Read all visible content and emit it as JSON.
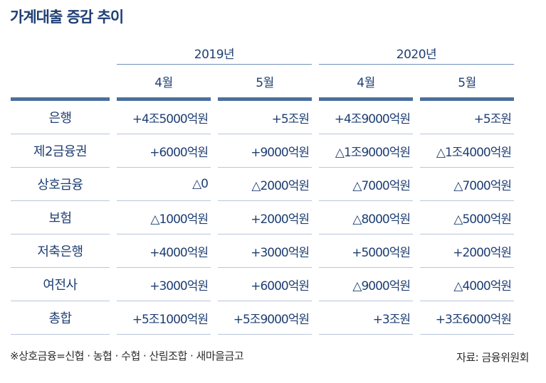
{
  "title": "가계대출 증감 추이",
  "years": [
    "2019년",
    "2020년"
  ],
  "months": [
    "4월",
    "5월",
    "4월",
    "5월"
  ],
  "rows": [
    {
      "label": "은행",
      "values": [
        "+4조5000억원",
        "+5조원",
        "+4조9000억원",
        "+5조원"
      ]
    },
    {
      "label": "제2금융권",
      "values": [
        "+6000억원",
        "+9000억원",
        "△1조9000억원",
        "△1조4000억원"
      ]
    },
    {
      "label": "상호금융",
      "values": [
        "△0",
        "△2000억원",
        "△7000억원",
        "△7000억원"
      ]
    },
    {
      "label": "보험",
      "values": [
        "△1000억원",
        "+2000억원",
        "△8000억원",
        "△5000억원"
      ]
    },
    {
      "label": "저축은행",
      "values": [
        "+4000억원",
        "+3000억원",
        "+5000억원",
        "+2000억원"
      ]
    },
    {
      "label": "여전사",
      "values": [
        "+3000억원",
        "+6000억원",
        "△9000억원",
        "△4000억원"
      ]
    },
    {
      "label": "총합",
      "values": [
        "+5조1000억원",
        "+5조9000억원",
        "+3조원",
        "+3조6000억원"
      ]
    }
  ],
  "note": "※상호금융=신협 · 농협 · 수협 · 산림조합 · 새마을금고",
  "source": "자료: 금융위원회"
}
